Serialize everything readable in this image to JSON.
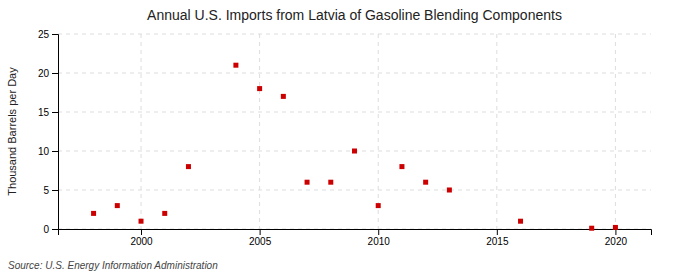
{
  "chart_data": {
    "type": "scatter",
    "title": "Annual U.S. Imports from Latvia of Gasoline Blending Components",
    "ylabel": "Thousand Barrels per Day",
    "source": "Source: U.S. Energy Information Administration",
    "x": [
      1998,
      1999,
      2000,
      2001,
      2002,
      2004,
      2005,
      2006,
      2007,
      2008,
      2009,
      2010,
      2011,
      2012,
      2013,
      2016,
      2019,
      2020
    ],
    "values": [
      2,
      3,
      1,
      2,
      8,
      21,
      18,
      17,
      6,
      6,
      10,
      3,
      8,
      6,
      5,
      1,
      0.1,
      0.2
    ],
    "color": "#cc0000",
    "marker": "square",
    "xlim": [
      1996.5,
      2021.5
    ],
    "ylim": [
      0,
      25
    ],
    "xticks": [
      2000,
      2005,
      2010,
      2015,
      2020
    ],
    "yticks": [
      0,
      5,
      10,
      15,
      20,
      25
    ],
    "grid": true
  }
}
